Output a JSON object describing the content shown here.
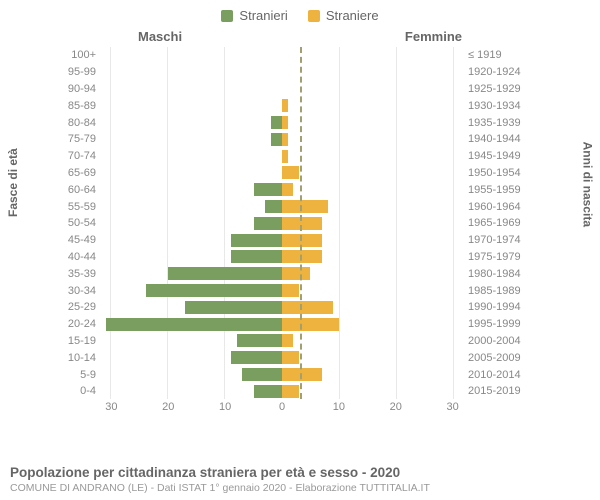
{
  "legend": {
    "male": {
      "label": "Stranieri",
      "color": "#7a9e5f"
    },
    "female": {
      "label": "Straniere",
      "color": "#eeb33e"
    }
  },
  "sides": {
    "left_title": "Maschi",
    "right_title": "Femmine"
  },
  "y_axis": {
    "left_label": "Fasce di età",
    "right_label": "Anni di nascita"
  },
  "x_axis": {
    "max": 32,
    "ticks": [
      0,
      10,
      20,
      30
    ]
  },
  "colors": {
    "grid": "#e8e8e8",
    "background": "#ffffff",
    "text_muted": "#888888"
  },
  "rows": [
    {
      "age": "100+",
      "birth": "≤ 1919",
      "m": 0,
      "f": 0
    },
    {
      "age": "95-99",
      "birth": "1920-1924",
      "m": 0,
      "f": 0
    },
    {
      "age": "90-94",
      "birth": "1925-1929",
      "m": 0,
      "f": 0
    },
    {
      "age": "85-89",
      "birth": "1930-1934",
      "m": 0,
      "f": 1
    },
    {
      "age": "80-84",
      "birth": "1935-1939",
      "m": 2,
      "f": 1
    },
    {
      "age": "75-79",
      "birth": "1940-1944",
      "m": 2,
      "f": 1
    },
    {
      "age": "70-74",
      "birth": "1945-1949",
      "m": 0,
      "f": 1
    },
    {
      "age": "65-69",
      "birth": "1950-1954",
      "m": 0,
      "f": 3
    },
    {
      "age": "60-64",
      "birth": "1955-1959",
      "m": 5,
      "f": 2
    },
    {
      "age": "55-59",
      "birth": "1960-1964",
      "m": 3,
      "f": 8
    },
    {
      "age": "50-54",
      "birth": "1965-1969",
      "m": 5,
      "f": 7
    },
    {
      "age": "45-49",
      "birth": "1970-1974",
      "m": 9,
      "f": 7
    },
    {
      "age": "40-44",
      "birth": "1975-1979",
      "m": 9,
      "f": 7
    },
    {
      "age": "35-39",
      "birth": "1980-1984",
      "m": 20,
      "f": 5
    },
    {
      "age": "30-34",
      "birth": "1985-1989",
      "m": 24,
      "f": 3
    },
    {
      "age": "25-29",
      "birth": "1990-1994",
      "m": 17,
      "f": 9
    },
    {
      "age": "20-24",
      "birth": "1995-1999",
      "m": 31,
      "f": 10
    },
    {
      "age": "15-19",
      "birth": "2000-2004",
      "m": 8,
      "f": 2
    },
    {
      "age": "10-14",
      "birth": "2005-2009",
      "m": 9,
      "f": 3
    },
    {
      "age": "5-9",
      "birth": "2010-2014",
      "m": 7,
      "f": 7
    },
    {
      "age": "0-4",
      "birth": "2015-2019",
      "m": 5,
      "f": 3
    }
  ],
  "footer": {
    "title": "Popolazione per cittadinanza straniera per età e sesso - 2020",
    "subtitle": "COMUNE DI ANDRANO (LE) - Dati ISTAT 1° gennaio 2020 - Elaborazione TUTTITALIA.IT"
  }
}
